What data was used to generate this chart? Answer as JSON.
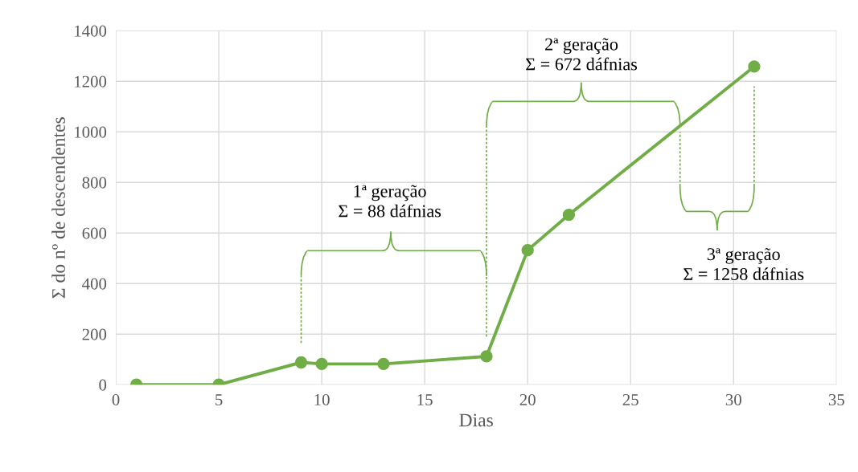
{
  "chart_data": {
    "type": "line",
    "xlabel": "Dias",
    "ylabel": "Σ do nº de descendentes",
    "x": [
      1,
      5,
      9,
      10,
      13,
      18,
      20,
      22,
      31
    ],
    "series": [
      {
        "color": "#70ad47",
        "values": [
          0,
          0,
          88,
          82,
          82,
          112,
          532,
          672,
          1258
        ]
      }
    ],
    "xlim": [
      0,
      35
    ],
    "xticks": [
      0,
      5,
      10,
      15,
      20,
      25,
      30,
      35
    ],
    "ylim": [
      0,
      1400
    ],
    "yticks": [
      0,
      200,
      400,
      600,
      800,
      1000,
      1200,
      1400
    ],
    "grid": true,
    "marker": "circle",
    "line_style": "solid",
    "annotations": [
      "1ª geração\nΣ = 88 dáfnias",
      "2ª geração\nΣ = 672 dáfnias",
      "3ª geração\nΣ = 1258 dáfnias"
    ]
  }
}
